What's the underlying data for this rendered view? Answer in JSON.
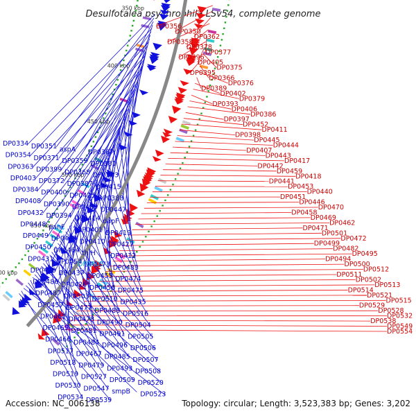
{
  "title": "Desulfotalea psychrophila LSv54, complete genome",
  "footer": {
    "accession": "Accession: NC_006138",
    "topology": "Topology: circular; Length: 3,523,383 bp; Genes: 3,202"
  },
  "colors": {
    "forward": "#ee1111",
    "reverse": "#1111dd",
    "backbone": "#888888",
    "rna": "#22aa22"
  },
  "ticks": [
    "350 kbp",
    "400 kbp",
    "450 kbp",
    "500 kbp",
    "550 kbp",
    "600 kbp"
  ],
  "forward_labels": [
    "DP0356",
    "DP0350",
    "DP0362",
    "DP0358",
    "DP0378",
    "DP0377",
    "DP0396",
    "DP0405",
    "DP0375",
    "DP0395",
    "DP0366",
    "DP0376",
    "DP0389",
    "DP0402",
    "DP0379",
    "DP0393",
    "DP0406",
    "DP0386",
    "DP0397",
    "DP0452",
    "DP0411",
    "DP0398",
    "DP0445",
    "DP0444",
    "DP0407",
    "DP0443",
    "DP0417",
    "DP0442",
    "DP0459",
    "DP0418",
    "DP0441",
    "DP0453",
    "DP0440",
    "DP0451",
    "DP0446",
    "DP0470",
    "DP0458",
    "DP0469",
    "DP0462",
    "DP0471",
    "DP0501",
    "DP0472",
    "DP0499",
    "DP0482",
    "DP0495",
    "DP0494",
    "DP0500",
    "DP0512",
    "DP0511",
    "DP0502",
    "DP0513",
    "DP0514",
    "DP0521",
    "DP0515",
    "DP0529",
    "DP0528",
    "DP0532",
    "DP0538",
    "DP0549",
    "DP0554"
  ],
  "reverse_labels": [
    "DP0334",
    "DP0351",
    "aspA",
    "DP0367",
    "DP0354",
    "DP0371",
    "DP0359",
    "DP0381",
    "DP0363",
    "DP0399",
    "DP0368",
    "DP0383",
    "DP0403",
    "DP0372",
    "DP0387",
    "DP0415",
    "DP0384",
    "DP0400",
    "DP0425",
    "DP0388",
    "DP0408",
    "DP0390",
    "DP0409",
    "DP0447",
    "DP0432",
    "DP0394",
    "DP0414",
    "dapF",
    "DP0448",
    "panF",
    "DP0401",
    "DP0419",
    "DP0449",
    "DP0463",
    "DP0410",
    "DP0427",
    "DP0450",
    "DP0464",
    "thiH",
    "DP0412",
    "DP0431",
    "DP0454",
    "DP0473",
    "DP0483",
    "DP0420",
    "DP0437",
    "DP0455",
    "DP0474",
    "DP0486",
    "DP0426",
    "DP0456",
    "DP0475",
    "DP0487",
    "DP0503",
    "DP0510",
    "DP0435",
    "DP0457",
    "DP0477",
    "DP0488",
    "DP0516",
    "DP0461",
    "DP0478",
    "DP0490",
    "DP0504",
    "DP0465",
    "DP0481",
    "DP0491",
    "DP0505",
    "DP0466",
    "DP0484",
    "DP0496",
    "DP0506",
    "DP0517",
    "DP0467",
    "DP0485",
    "DP0507",
    "DP0518",
    "DP0479",
    "DP0493",
    "DP0508",
    "DP0519",
    "DP0527",
    "DP0509",
    "DP0520",
    "DP0530",
    "DP0547",
    "smpB",
    "DP0523",
    "DP0534",
    "DP0539"
  ],
  "rna_label": "DP0R05"
}
